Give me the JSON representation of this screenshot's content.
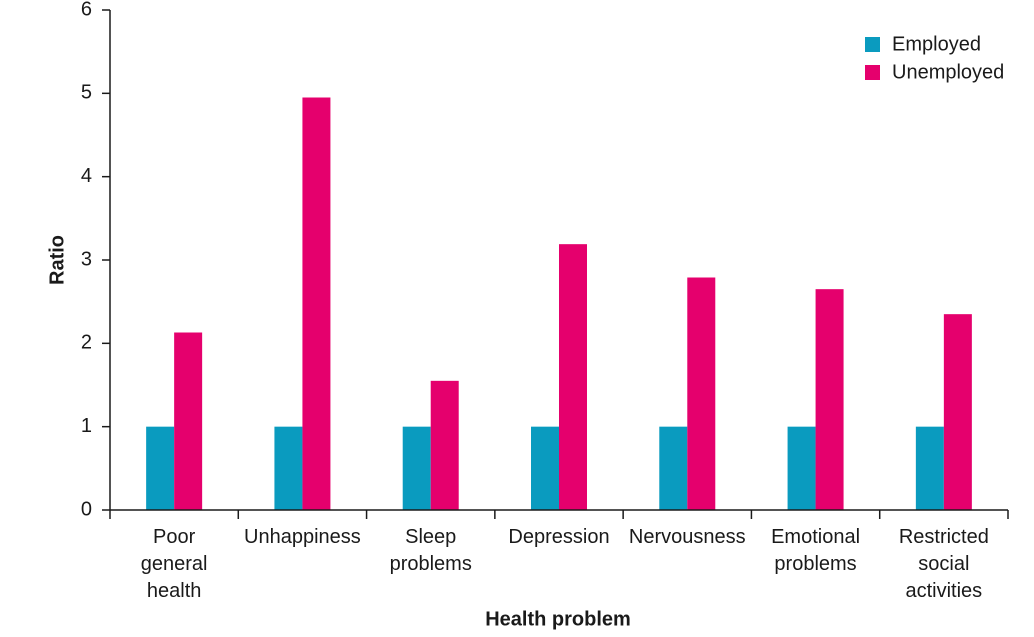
{
  "chart_data": {
    "type": "bar",
    "x_label": "Health problem",
    "y_label": "Ratio",
    "categories": [
      "Poor general health",
      "Unhappiness",
      "Sleep problems",
      "Depression",
      "Nervousness",
      "Emotional problems",
      "Restricted social activities"
    ],
    "series": [
      {
        "name": "Employed",
        "color": "#0a9bbf",
        "values": [
          1,
          1,
          1,
          1,
          1,
          1,
          1
        ]
      },
      {
        "name": "Unemployed",
        "color": "#e5006d",
        "values": [
          2.13,
          4.95,
          1.55,
          3.19,
          2.79,
          2.65,
          2.35
        ]
      }
    ],
    "ylim": [
      0,
      6
    ],
    "yticks": [
      0,
      1,
      2,
      3,
      4,
      5,
      6
    ],
    "grid": false,
    "legend": "top-right"
  }
}
